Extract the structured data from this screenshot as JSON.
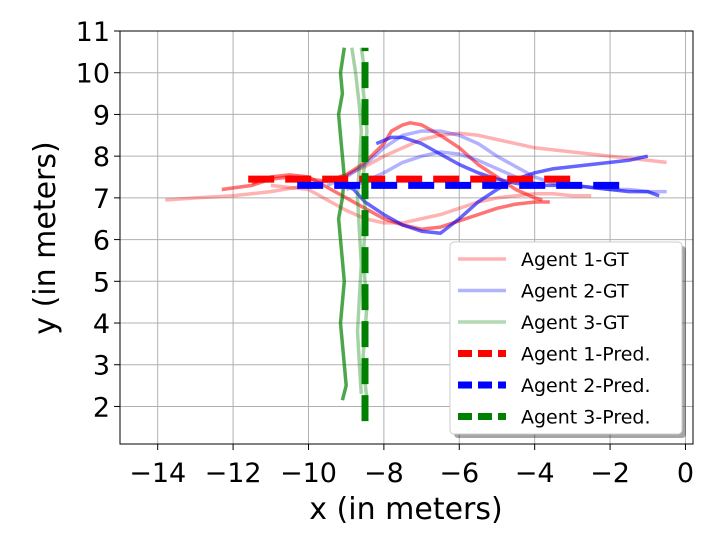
{
  "chart_data": {
    "type": "line",
    "xlabel": "x (in meters)",
    "ylabel": "y (in meters)",
    "xlim": [
      -15.0,
      0.2
    ],
    "ylim": [
      1.1,
      11.0
    ],
    "xticks": [
      -14,
      -12,
      -10,
      -8,
      -6,
      -4,
      -2,
      0
    ],
    "xtick_labels": [
      "−14",
      "−12",
      "−10",
      "−8",
      "−6",
      "−4",
      "−2",
      "0"
    ],
    "yticks": [
      2,
      3,
      4,
      5,
      6,
      7,
      8,
      9,
      10,
      11
    ],
    "ytick_labels": [
      "2",
      "3",
      "4",
      "5",
      "6",
      "7",
      "8",
      "9",
      "10",
      "11"
    ],
    "grid": true,
    "legend_position": "lower-right",
    "legend": [
      {
        "label": "Agent 1-GT",
        "color": "#ff0000",
        "alpha": 0.3,
        "dashed": false
      },
      {
        "label": "Agent 2-GT",
        "color": "#0000ff",
        "alpha": 0.3,
        "dashed": false
      },
      {
        "label": "Agent 3-GT",
        "color": "#008000",
        "alpha": 0.3,
        "dashed": false
      },
      {
        "label": "Agent 1-Pred.",
        "color": "#ff0000",
        "alpha": 1.0,
        "dashed": true
      },
      {
        "label": "Agent 2-Pred.",
        "color": "#0000ff",
        "alpha": 1.0,
        "dashed": true
      },
      {
        "label": "Agent 3-Pred.",
        "color": "#008000",
        "alpha": 1.0,
        "dashed": true
      }
    ],
    "series": [
      {
        "name": "Agent 1-GT",
        "color": "#ff0000",
        "alpha": 0.3,
        "width": 3.5,
        "x": [
          -13.8,
          -13.0,
          -12.0,
          -11.0,
          -10.0,
          -9.0,
          -8.5,
          -8.0,
          -7.5,
          -7.0,
          -6.5,
          -6.0,
          -5.5,
          -5.0,
          -4.5,
          -4.0,
          -3.5,
          -3.0,
          -2.5,
          -2.0,
          -1.5,
          -1.0,
          -0.5
        ],
        "y": [
          6.95,
          7.0,
          7.05,
          7.15,
          7.3,
          7.55,
          7.75,
          8.0,
          8.2,
          8.4,
          8.5,
          8.55,
          8.5,
          8.4,
          8.3,
          8.2,
          8.15,
          8.1,
          8.05,
          8.0,
          7.95,
          7.9,
          7.85
        ]
      },
      {
        "name": "Agent 1-GT",
        "color": "#ff0000",
        "alpha": 0.3,
        "width": 3.5,
        "x": [
          -11.0,
          -10.0,
          -9.5,
          -9.0,
          -8.5,
          -8.0,
          -7.5,
          -7.0,
          -6.5,
          -6.0,
          -5.5,
          -5.0,
          -4.5,
          -4.0,
          -3.5,
          -3.0,
          -2.5
        ],
        "y": [
          7.3,
          7.2,
          6.95,
          6.7,
          6.5,
          6.4,
          6.4,
          6.5,
          6.6,
          6.75,
          6.9,
          7.0,
          7.05,
          7.1,
          7.1,
          7.05,
          7.05
        ]
      },
      {
        "name": "Agent 1-GT",
        "color": "#ff0000",
        "alpha": 0.55,
        "width": 3.5,
        "x": [
          -12.3,
          -11.5,
          -11.0,
          -10.5,
          -10.0,
          -9.5,
          -9.0,
          -8.5,
          -8.0,
          -7.8,
          -7.5,
          -7.3,
          -7.0,
          -6.5,
          -6.0,
          -5.5,
          -5.0,
          -4.5,
          -4.0,
          -3.8
        ],
        "y": [
          7.2,
          7.3,
          7.45,
          7.5,
          7.45,
          7.4,
          7.55,
          7.85,
          8.3,
          8.6,
          8.75,
          8.8,
          8.75,
          8.5,
          8.2,
          7.8,
          7.5,
          7.2,
          7.0,
          6.95
        ]
      },
      {
        "name": "Agent 1-GT",
        "color": "#ff0000",
        "alpha": 0.55,
        "width": 3.5,
        "x": [
          -11.5,
          -11.0,
          -10.5,
          -10.0,
          -9.5,
          -9.0,
          -8.5,
          -8.0,
          -7.5,
          -7.0,
          -6.5,
          -6.0,
          -5.5,
          -5.0,
          -4.5,
          -4.0,
          -3.6
        ],
        "y": [
          7.35,
          7.5,
          7.55,
          7.5,
          7.25,
          7.0,
          6.75,
          6.5,
          6.35,
          6.25,
          6.3,
          6.45,
          6.6,
          6.75,
          6.85,
          6.9,
          6.9
        ]
      },
      {
        "name": "Agent 2-GT",
        "color": "#0000ff",
        "alpha": 0.3,
        "width": 3.5,
        "x": [
          -9.5,
          -9.0,
          -8.5,
          -8.0,
          -7.5,
          -7.0,
          -6.5,
          -6.0,
          -5.5,
          -5.0,
          -4.5,
          -4.0,
          -3.5,
          -3.0,
          -2.5,
          -2.0,
          -1.5,
          -1.0,
          -0.5
        ],
        "y": [
          7.3,
          7.5,
          7.8,
          8.2,
          8.5,
          8.6,
          8.6,
          8.5,
          8.3,
          8.0,
          7.75,
          7.5,
          7.35,
          7.3,
          7.25,
          7.2,
          7.2,
          7.15,
          7.15
        ]
      },
      {
        "name": "Agent 2-GT",
        "color": "#0000ff",
        "alpha": 0.3,
        "width": 3.5,
        "x": [
          -9.0,
          -8.5,
          -8.0,
          -7.5,
          -7.0,
          -6.5,
          -6.0,
          -5.5,
          -5.0,
          -4.5,
          -4.0
        ],
        "y": [
          7.2,
          7.4,
          7.6,
          7.85,
          8.0,
          8.1,
          8.05,
          7.9,
          7.7,
          7.5,
          7.35
        ]
      },
      {
        "name": "Agent 2-GT",
        "color": "#0000ff",
        "alpha": 0.6,
        "width": 3.5,
        "x": [
          -9.2,
          -8.8,
          -8.5,
          -8.0,
          -7.5,
          -7.0,
          -6.5,
          -6.0,
          -5.5,
          -5.0,
          -4.5,
          -4.0,
          -3.5,
          -3.0,
          -2.5,
          -2.0,
          -1.5,
          -1.0
        ],
        "y": [
          7.4,
          7.2,
          6.9,
          6.6,
          6.35,
          6.2,
          6.15,
          6.5,
          6.9,
          7.2,
          7.45,
          7.6,
          7.7,
          7.75,
          7.8,
          7.85,
          7.9,
          8.0
        ]
      },
      {
        "name": "Agent 2-GT",
        "color": "#0000ff",
        "alpha": 0.6,
        "width": 3.5,
        "x": [
          -8.2,
          -7.8,
          -7.5,
          -7.0,
          -6.5,
          -6.0,
          -5.5,
          -5.0,
          -4.5,
          -4.0,
          -3.5,
          -3.0,
          -2.5,
          -2.0,
          -1.5,
          -1.0,
          -0.7
        ],
        "y": [
          8.3,
          8.45,
          8.45,
          8.3,
          8.05,
          7.8,
          7.6,
          7.45,
          7.35,
          7.3,
          7.3,
          7.3,
          7.25,
          7.2,
          7.15,
          7.15,
          7.05
        ]
      },
      {
        "name": "Agent 3-GT",
        "color": "#008000",
        "alpha": 0.7,
        "width": 3.5,
        "x": [
          -9.1,
          -9.0,
          -9.05,
          -9.1,
          -9.15,
          -9.1,
          -9.05,
          -9.1,
          -9.15,
          -9.2,
          -9.1,
          -9.05,
          -9.1,
          -9.15,
          -9.2,
          -9.1,
          -9.15,
          -9.1,
          -9.05
        ],
        "y": [
          2.15,
          2.5,
          3.0,
          3.5,
          4.0,
          4.5,
          5.0,
          5.5,
          6.0,
          6.5,
          7.0,
          7.5,
          8.0,
          8.5,
          9.0,
          9.5,
          10.0,
          10.3,
          10.6
        ]
      },
      {
        "name": "Agent 3-GT",
        "color": "#008000",
        "alpha": 0.35,
        "width": 3.5,
        "x": [
          -8.45,
          -8.5,
          -8.55,
          -8.5,
          -8.45,
          -8.5,
          -8.55,
          -8.5,
          -8.5,
          -8.55,
          -8.5,
          -8.45,
          -8.5,
          -8.55,
          -8.5,
          -8.55,
          -8.6
        ],
        "y": [
          2.15,
          2.6,
          3.2,
          3.8,
          4.4,
          5.0,
          5.6,
          6.2,
          6.8,
          7.4,
          8.0,
          8.6,
          9.2,
          9.6,
          10.0,
          10.3,
          10.6
        ]
      },
      {
        "name": "Agent 3-GT",
        "color": "#008000",
        "alpha": 0.35,
        "width": 3.5,
        "x": [
          -8.6,
          -8.65,
          -8.7,
          -8.65,
          -8.6,
          -8.65,
          -8.7,
          -8.65,
          -8.6,
          -8.65,
          -8.7,
          -8.75,
          -8.8,
          -8.85
        ],
        "y": [
          2.3,
          3.0,
          3.8,
          4.6,
          5.4,
          6.2,
          7.0,
          7.8,
          8.6,
          9.2,
          9.6,
          10.0,
          10.3,
          10.6
        ]
      },
      {
        "name": "Agent 1-Pred.",
        "color": "#ff0000",
        "alpha": 1.0,
        "width": 7,
        "dashed": true,
        "x": [
          -11.6,
          -2.8
        ],
        "y": [
          7.45,
          7.45
        ]
      },
      {
        "name": "Agent 2-Pred.",
        "color": "#0000ff",
        "alpha": 1.0,
        "width": 7,
        "dashed": true,
        "x": [
          -10.3,
          -1.5
        ],
        "y": [
          7.3,
          7.3
        ]
      },
      {
        "name": "Agent 3-Pred.",
        "color": "#008000",
        "alpha": 1.0,
        "width": 7,
        "dashed": true,
        "x": [
          -8.5,
          -8.5
        ],
        "y": [
          1.65,
          10.6
        ]
      }
    ]
  }
}
